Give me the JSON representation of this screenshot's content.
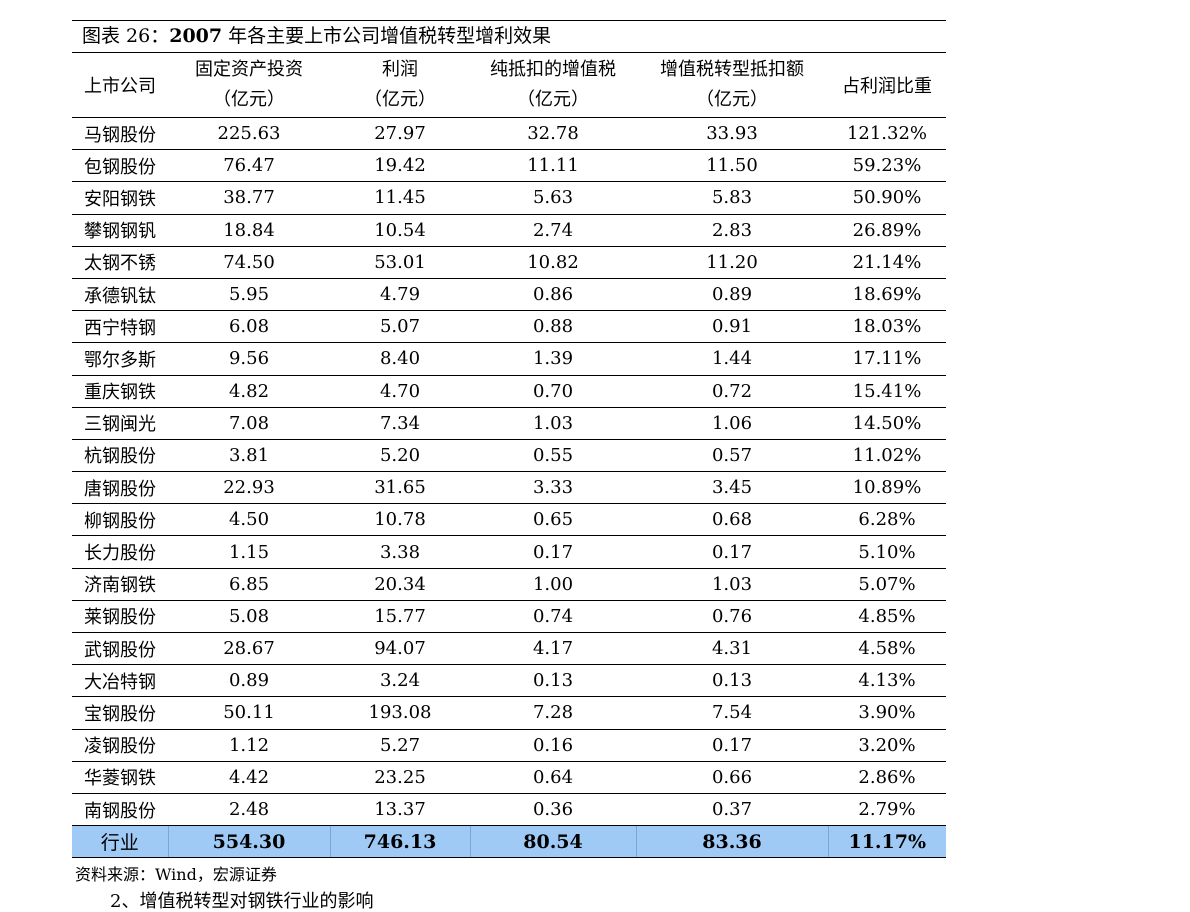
{
  "title_prefix": "图表 26：",
  "title_year": "2007",
  "title_text": " 年各主要上市公司增值税转型增利效果",
  "headers": [
    {
      "line1": "上市公司",
      "line2": ""
    },
    {
      "line1": "固定资产投资",
      "line2": "（亿元）"
    },
    {
      "line1": "利润",
      "line2": "（亿元）"
    },
    {
      "line1": "纯抵扣的增值税",
      "line2": "（亿元）"
    },
    {
      "line1": "增值税转型抵扣额",
      "line2": "（亿元）"
    },
    {
      "line1": "占利润比重",
      "line2": ""
    }
  ],
  "rows": [
    [
      "马钢股份",
      "225.63",
      "27.97",
      "32.78",
      "33.93",
      "121.32%"
    ],
    [
      "包钢股份",
      "76.47",
      "19.42",
      "11.11",
      "11.50",
      "59.23%"
    ],
    [
      "安阳钢铁",
      "38.77",
      "11.45",
      "5.63",
      "5.83",
      "50.90%"
    ],
    [
      "攀钢钢钒",
      "18.84",
      "10.54",
      "2.74",
      "2.83",
      "26.89%"
    ],
    [
      "太钢不锈",
      "74.50",
      "53.01",
      "10.82",
      "11.20",
      "21.14%"
    ],
    [
      "承德钒钛",
      "5.95",
      "4.79",
      "0.86",
      "0.89",
      "18.69%"
    ],
    [
      "西宁特钢",
      "6.08",
      "5.07",
      "0.88",
      "0.91",
      "18.03%"
    ],
    [
      "鄂尔多斯",
      "9.56",
      "8.40",
      "1.39",
      "1.44",
      "17.11%"
    ],
    [
      "重庆钢铁",
      "4.82",
      "4.70",
      "0.70",
      "0.72",
      "15.41%"
    ],
    [
      "三钢闽光",
      "7.08",
      "7.34",
      "1.03",
      "1.06",
      "14.50%"
    ],
    [
      "杭钢股份",
      "3.81",
      "5.20",
      "0.55",
      "0.57",
      "11.02%"
    ],
    [
      "唐钢股份",
      "22.93",
      "31.65",
      "3.33",
      "3.45",
      "10.89%"
    ],
    [
      "柳钢股份",
      "4.50",
      "10.78",
      "0.65",
      "0.68",
      "6.28%"
    ],
    [
      "长力股份",
      "1.15",
      "3.38",
      "0.17",
      "0.17",
      "5.10%"
    ],
    [
      "济南钢铁",
      "6.85",
      "20.34",
      "1.00",
      "1.03",
      "5.07%"
    ],
    [
      "莱钢股份",
      "5.08",
      "15.77",
      "0.74",
      "0.76",
      "4.85%"
    ],
    [
      "武钢股份",
      "28.67",
      "94.07",
      "4.17",
      "4.31",
      "4.58%"
    ],
    [
      "大冶特钢",
      "0.89",
      "3.24",
      "0.13",
      "0.13",
      "4.13%"
    ],
    [
      "宝钢股份",
      "50.11",
      "193.08",
      "7.28",
      "7.54",
      "3.90%"
    ],
    [
      "凌钢股份",
      "1.12",
      "5.27",
      "0.16",
      "0.17",
      "3.20%"
    ],
    [
      "华菱钢铁",
      "4.42",
      "23.25",
      "0.64",
      "0.66",
      "2.86%"
    ],
    [
      "南钢股份",
      "2.48",
      "13.37",
      "0.36",
      "0.37",
      "2.79%"
    ]
  ],
  "total": [
    "行业",
    "554.30",
    "746.13",
    "80.54",
    "83.36",
    "11.17%"
  ],
  "source": "资料来源：Wind，宏源证券",
  "cut_text": "2、增值税转型对钢铁行业的影响"
}
